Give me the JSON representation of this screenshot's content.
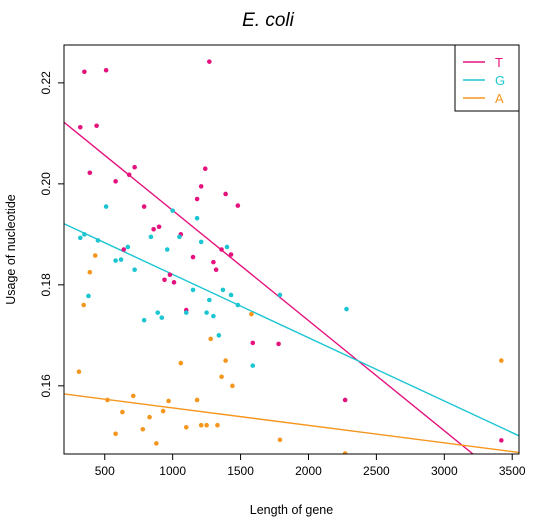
{
  "chart_data": {
    "type": "scatter",
    "title": "E. coli",
    "xlabel": "Length of gene",
    "ylabel": "Usage of nucleotide",
    "xlim": [
      200,
      3550
    ],
    "ylim": [
      0.1465,
      0.2275
    ],
    "x_ticks": [
      500,
      1000,
      1500,
      2000,
      2500,
      3000,
      3500
    ],
    "y_ticks": [
      0.16,
      0.18,
      0.2,
      0.22
    ],
    "x_tick_labels": [
      "500",
      "1000",
      "1500",
      "2000",
      "2500",
      "3000",
      "3500"
    ],
    "y_tick_labels": [
      "0.16",
      "0.18",
      "0.20",
      "0.22"
    ],
    "grid": false,
    "legend_position": "top-right",
    "series": [
      {
        "name": "T",
        "color": "#E5127D",
        "points": [
          [
            320,
            0.2112
          ],
          [
            350,
            0.2222
          ],
          [
            390,
            0.2022
          ],
          [
            440,
            0.2115
          ],
          [
            510,
            0.2225
          ],
          [
            580,
            0.2005
          ],
          [
            640,
            0.187
          ],
          [
            680,
            0.2018
          ],
          [
            720,
            0.2033
          ],
          [
            790,
            0.1955
          ],
          [
            860,
            0.191
          ],
          [
            900,
            0.1915
          ],
          [
            940,
            0.181
          ],
          [
            980,
            0.182
          ],
          [
            1010,
            0.1805
          ],
          [
            1060,
            0.19
          ],
          [
            1100,
            0.175
          ],
          [
            1150,
            0.1855
          ],
          [
            1180,
            0.197
          ],
          [
            1210,
            0.1995
          ],
          [
            1240,
            0.203
          ],
          [
            1270,
            0.2242
          ],
          [
            1300,
            0.1845
          ],
          [
            1320,
            0.183
          ],
          [
            1360,
            0.187
          ],
          [
            1390,
            0.198
          ],
          [
            1430,
            0.186
          ],
          [
            1480,
            0.1957
          ],
          [
            1590,
            0.1685
          ],
          [
            1780,
            0.1683
          ],
          [
            2270,
            0.1572
          ],
          [
            3420,
            0.1492
          ]
        ],
        "fit": [
          [
            200,
            0.2122
          ],
          [
            3550,
            0.1391
          ]
        ]
      },
      {
        "name": "G",
        "color": "#1CC5D2",
        "points": [
          [
            320,
            0.1893
          ],
          [
            350,
            0.19
          ],
          [
            380,
            0.1778
          ],
          [
            450,
            0.1888
          ],
          [
            510,
            0.1955
          ],
          [
            580,
            0.1848
          ],
          [
            620,
            0.185
          ],
          [
            670,
            0.1875
          ],
          [
            720,
            0.183
          ],
          [
            790,
            0.173
          ],
          [
            840,
            0.1895
          ],
          [
            890,
            0.1745
          ],
          [
            920,
            0.1735
          ],
          [
            960,
            0.187
          ],
          [
            1000,
            0.1947
          ],
          [
            1050,
            0.1895
          ],
          [
            1100,
            0.1745
          ],
          [
            1150,
            0.179
          ],
          [
            1180,
            0.1932
          ],
          [
            1210,
            0.1885
          ],
          [
            1250,
            0.1745
          ],
          [
            1270,
            0.177
          ],
          [
            1300,
            0.1738
          ],
          [
            1340,
            0.17
          ],
          [
            1370,
            0.179
          ],
          [
            1400,
            0.1875
          ],
          [
            1430,
            0.178
          ],
          [
            1480,
            0.176
          ],
          [
            1590,
            0.164
          ],
          [
            1790,
            0.178
          ],
          [
            2280,
            0.1752
          ]
        ],
        "fit": [
          [
            200,
            0.1921
          ],
          [
            3550,
            0.1501
          ]
        ]
      },
      {
        "name": "A",
        "color": "#F5961E",
        "points": [
          [
            310,
            0.1628
          ],
          [
            345,
            0.176
          ],
          [
            390,
            0.1825
          ],
          [
            430,
            0.1858
          ],
          [
            520,
            0.1572
          ],
          [
            580,
            0.1505
          ],
          [
            630,
            0.1548
          ],
          [
            710,
            0.158
          ],
          [
            780,
            0.1514
          ],
          [
            830,
            0.1538
          ],
          [
            880,
            0.1486
          ],
          [
            930,
            0.155
          ],
          [
            970,
            0.157
          ],
          [
            1060,
            0.1645
          ],
          [
            1100,
            0.1518
          ],
          [
            1180,
            0.1572
          ],
          [
            1210,
            0.1522
          ],
          [
            1250,
            0.1522
          ],
          [
            1280,
            0.1693
          ],
          [
            1330,
            0.1522
          ],
          [
            1360,
            0.1618
          ],
          [
            1390,
            0.165
          ],
          [
            1440,
            0.16
          ],
          [
            1580,
            0.1742
          ],
          [
            1790,
            0.1493
          ],
          [
            2270,
            0.1466
          ],
          [
            3420,
            0.165
          ]
        ],
        "fit": [
          [
            200,
            0.1584
          ],
          [
            3550,
            0.1468
          ]
        ]
      }
    ]
  }
}
